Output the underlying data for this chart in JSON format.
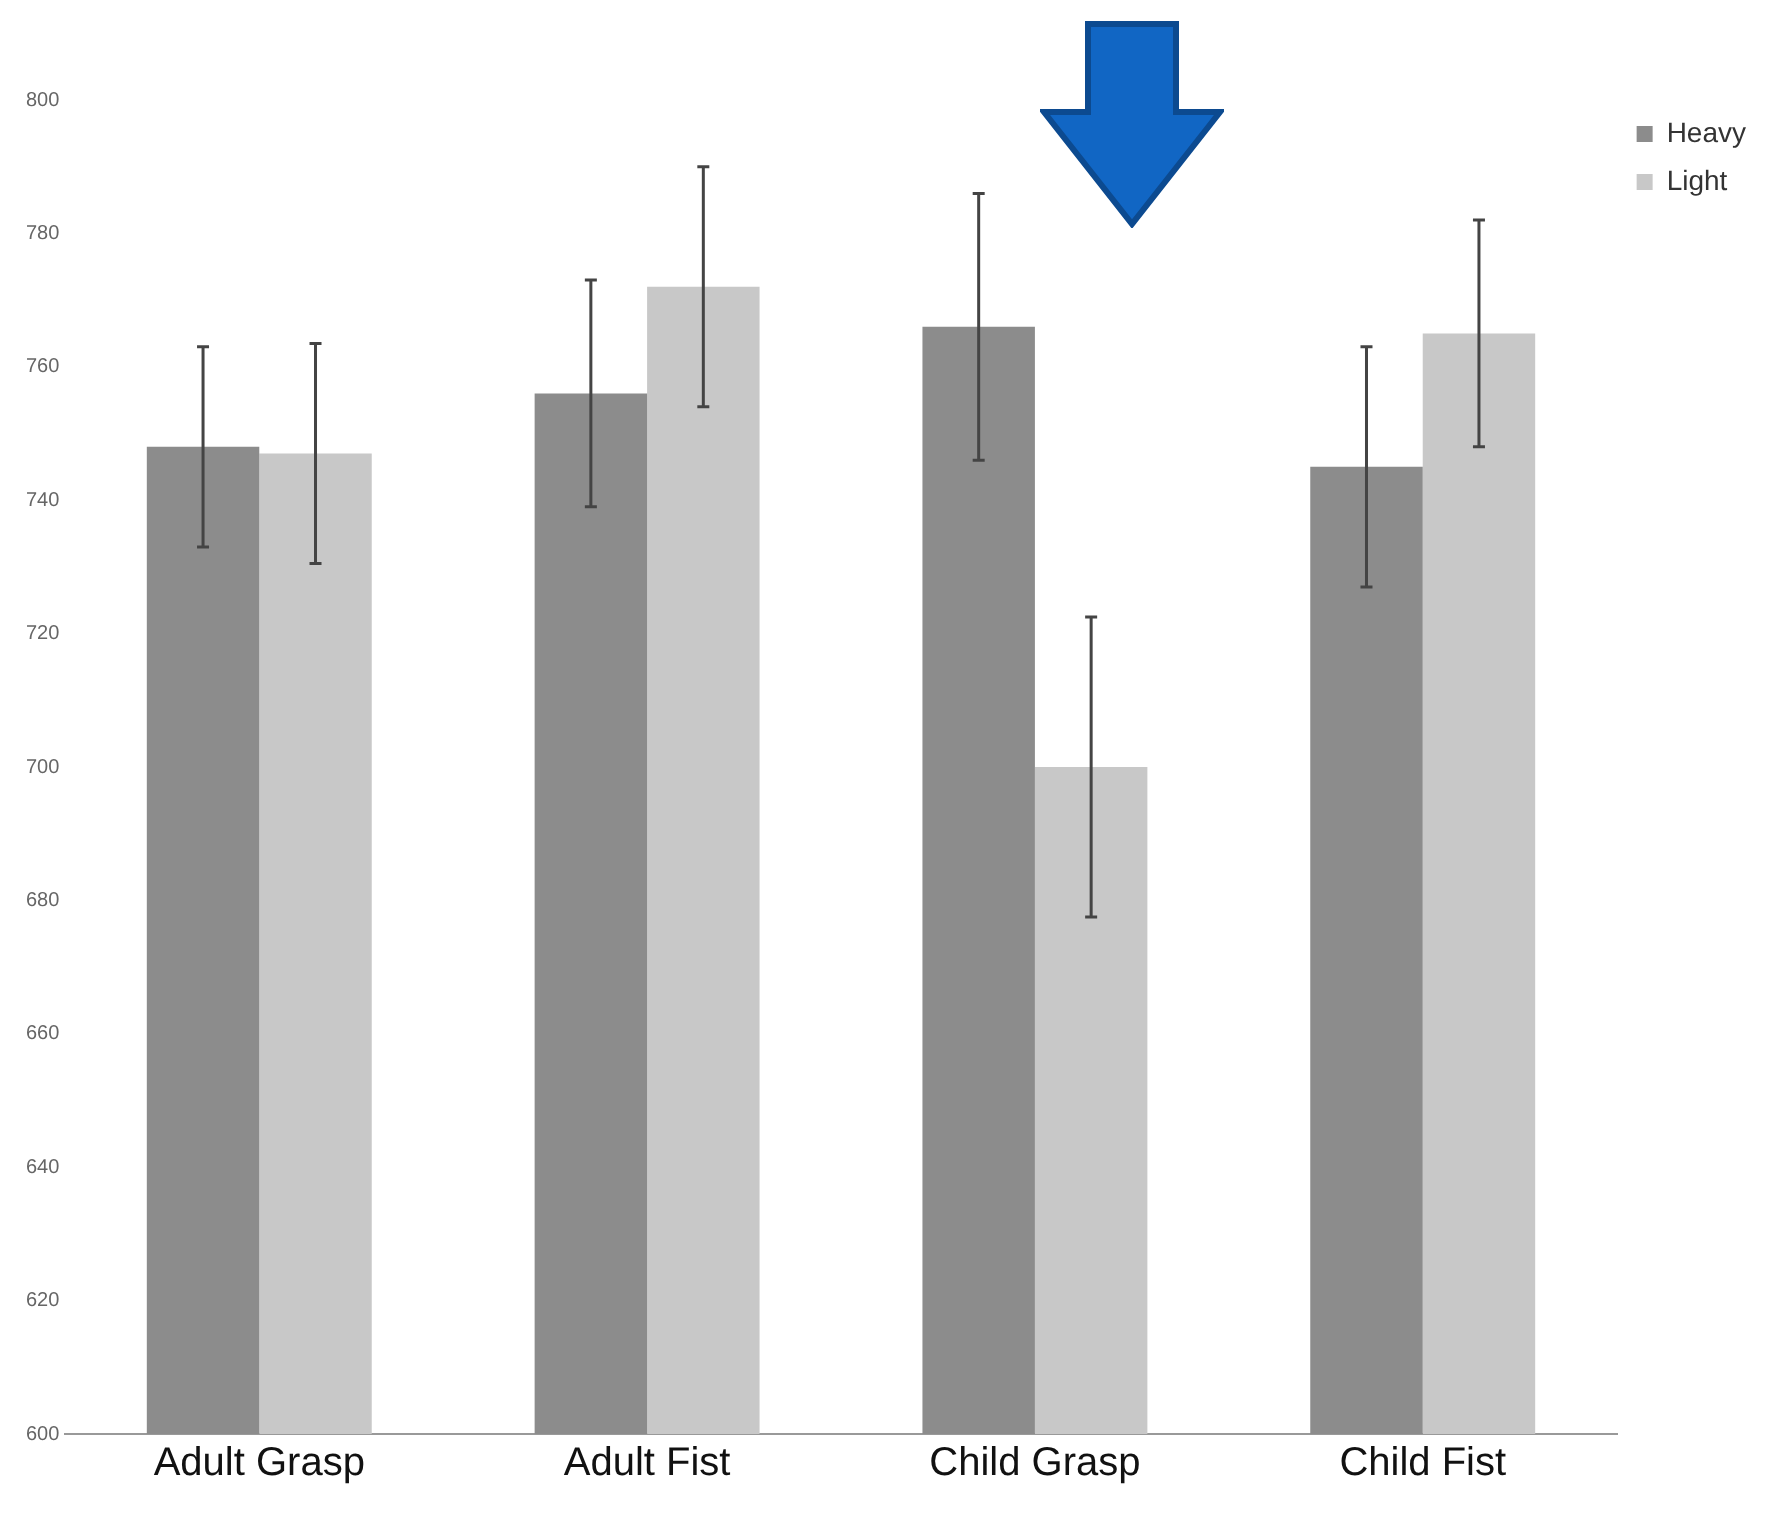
{
  "chart_data": {
    "type": "bar",
    "categories": [
      "Adult Grasp",
      "Adult Fist",
      "Child Grasp",
      "Child Fist"
    ],
    "series": [
      {
        "name": "Heavy",
        "color": "#8c8c8c",
        "values": [
          748,
          756,
          766,
          745
        ],
        "errors": [
          15,
          17,
          20,
          18
        ]
      },
      {
        "name": "Light",
        "color": "#c8c8c8",
        "values": [
          747,
          772,
          700,
          765
        ],
        "errors": [
          16.5,
          18,
          22.5,
          17
        ]
      }
    ],
    "ylim": [
      600,
      800
    ],
    "yticks": [
      600,
      620,
      640,
      660,
      680,
      700,
      720,
      740,
      760,
      780,
      800
    ],
    "grid": false,
    "legend": "top right"
  }
}
